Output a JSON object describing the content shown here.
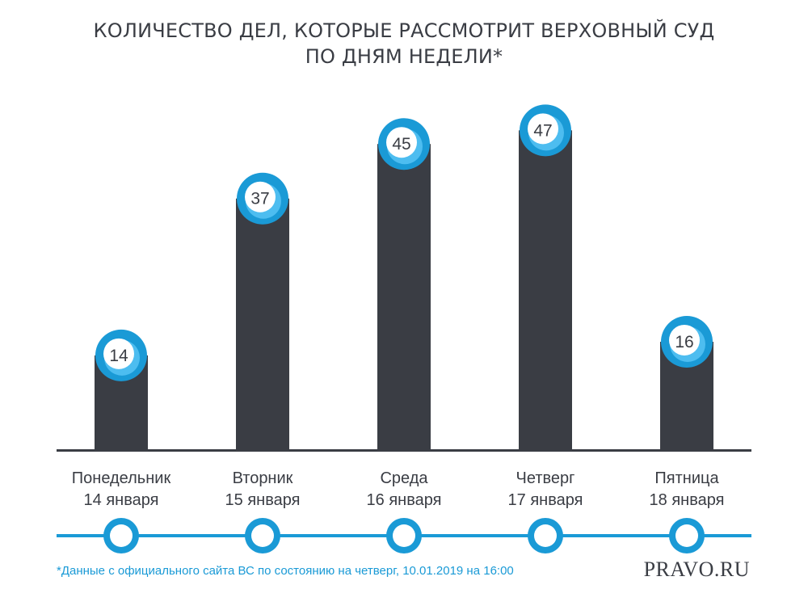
{
  "title_lines": [
    "КОЛИЧЕСТВО ДЕЛ, КОТОРЫЕ РАССМОТРИТ ВЕРХОВНЫЙ СУД",
    "ПО ДНЯМ НЕДЕЛИ*"
  ],
  "footnote": "*Данные с официального сайта ВС по состоянию на четверг, 10.01.2019  на 16:00",
  "logo": "PRAVO.RU",
  "colors": {
    "bar": "#3a3d44",
    "accent": "#1a9ad6",
    "text": "#3a3d44"
  },
  "chart_data": {
    "type": "bar",
    "title": "КОЛИЧЕСТВО ДЕЛ, КОТОРЫЕ РАССМОТРИТ ВЕРХОВНЫЙ СУД ПО ДНЯМ НЕДЕЛИ*",
    "categories": [
      [
        "Понедельник",
        "14 января"
      ],
      [
        "Вторник",
        "15 января"
      ],
      [
        "Среда",
        "16 января"
      ],
      [
        "Четверг",
        "17 января"
      ],
      [
        "Пятница",
        "18 января"
      ]
    ],
    "values": [
      14,
      37,
      45,
      47,
      16
    ],
    "ylim": [
      0,
      50
    ],
    "grid": false,
    "legend": "none",
    "xlabel": "",
    "ylabel": ""
  }
}
